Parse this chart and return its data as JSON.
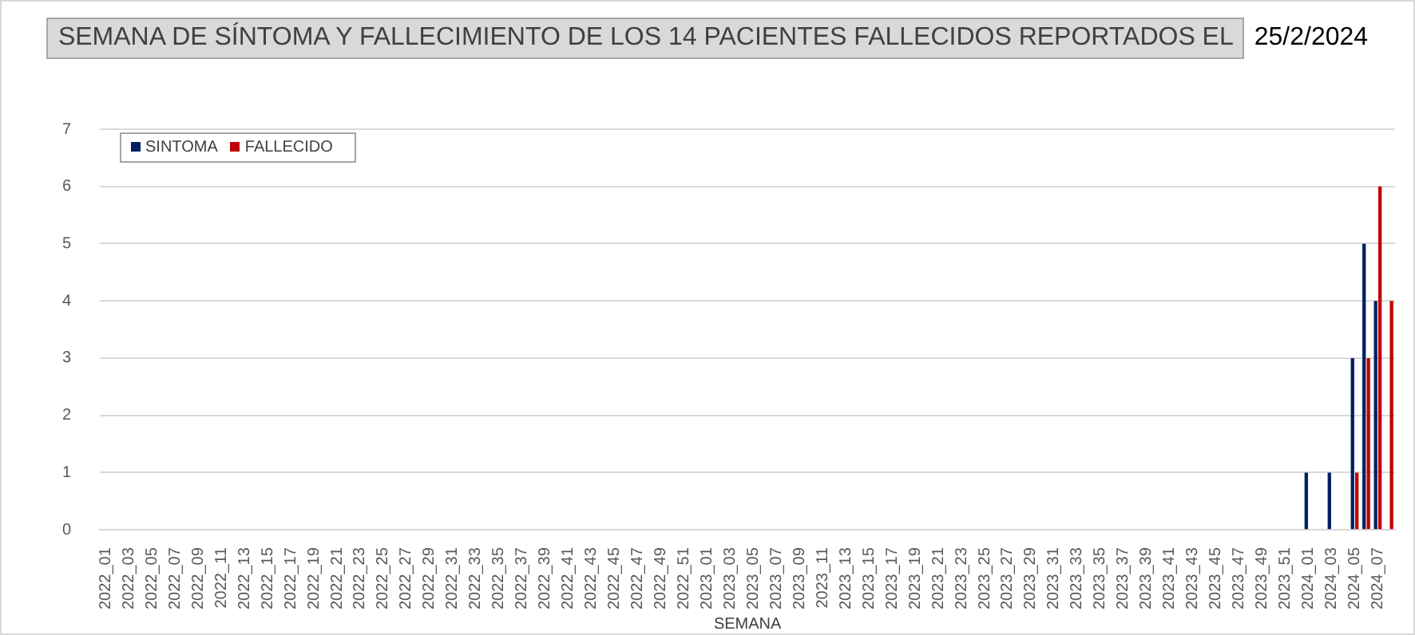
{
  "chart_data": {
    "type": "bar",
    "title": "SEMANA DE SÍNTOMA Y FALLECIMIENTO DE LOS  14   PACIENTES FALLECIDOS REPORTADOS EL",
    "subtitle": "25/2/2024",
    "xlabel": "SEMANA",
    "categories": [
      "2022_01",
      null,
      "2022_03",
      null,
      "2022_05",
      null,
      "2022_07",
      null,
      "2022_09",
      null,
      "2022_11",
      null,
      "2022_13",
      null,
      "2022_15",
      null,
      "2022_17",
      null,
      "2022_19",
      null,
      "2022_21",
      null,
      "2022_23",
      null,
      "2022_25",
      null,
      "2022_27",
      null,
      "2022_29",
      null,
      "2022_31",
      null,
      "2022_33",
      null,
      "2022_35",
      null,
      "2022_37",
      null,
      "2022_39",
      null,
      "2022_41",
      null,
      "2022_43",
      null,
      "2022_45",
      null,
      "2022_47",
      null,
      "2022_49",
      null,
      "2022_51",
      null,
      "2023_01",
      null,
      "2023_03",
      null,
      "2023_05",
      null,
      "2023_07",
      null,
      "2023_09",
      null,
      "2023_11",
      null,
      "2023_13",
      null,
      "2023_15",
      null,
      "2023_17",
      null,
      "2023_19",
      null,
      "2023_21",
      null,
      "2023_23",
      null,
      "2023_25",
      null,
      "2023_27",
      null,
      "2023_29",
      null,
      "2023_31",
      null,
      "2023_33",
      null,
      "2023_35",
      null,
      "2023_37",
      null,
      "2023_39",
      null,
      "2023_41",
      null,
      "2023_43",
      null,
      "2023_45",
      null,
      "2023_47",
      null,
      "2023_49",
      null,
      "2023_51",
      null,
      "2024_01",
      null,
      "2024_03",
      null,
      "2024_05",
      null,
      "2024_07",
      null
    ],
    "series": [
      {
        "name": "SINTOMA",
        "color": "#002060",
        "values": [
          0,
          0,
          0,
          0,
          0,
          0,
          0,
          0,
          0,
          0,
          0,
          0,
          0,
          0,
          0,
          0,
          0,
          0,
          0,
          0,
          0,
          0,
          0,
          0,
          0,
          0,
          0,
          0,
          0,
          0,
          0,
          0,
          0,
          0,
          0,
          0,
          0,
          0,
          0,
          0,
          0,
          0,
          0,
          0,
          0,
          0,
          0,
          0,
          0,
          0,
          0,
          0,
          0,
          0,
          0,
          0,
          0,
          0,
          0,
          0,
          0,
          0,
          0,
          0,
          0,
          0,
          0,
          0,
          0,
          0,
          0,
          0,
          0,
          0,
          0,
          0,
          0,
          0,
          0,
          0,
          0,
          0,
          0,
          0,
          0,
          0,
          0,
          0,
          0,
          0,
          0,
          0,
          0,
          0,
          0,
          0,
          0,
          0,
          0,
          0,
          0,
          0,
          0,
          0,
          1,
          0,
          1,
          0,
          3,
          5,
          4,
          0
        ]
      },
      {
        "name": "FALLECIDO",
        "color": "#c00000",
        "values": [
          0,
          0,
          0,
          0,
          0,
          0,
          0,
          0,
          0,
          0,
          0,
          0,
          0,
          0,
          0,
          0,
          0,
          0,
          0,
          0,
          0,
          0,
          0,
          0,
          0,
          0,
          0,
          0,
          0,
          0,
          0,
          0,
          0,
          0,
          0,
          0,
          0,
          0,
          0,
          0,
          0,
          0,
          0,
          0,
          0,
          0,
          0,
          0,
          0,
          0,
          0,
          0,
          0,
          0,
          0,
          0,
          0,
          0,
          0,
          0,
          0,
          0,
          0,
          0,
          0,
          0,
          0,
          0,
          0,
          0,
          0,
          0,
          0,
          0,
          0,
          0,
          0,
          0,
          0,
          0,
          0,
          0,
          0,
          0,
          0,
          0,
          0,
          0,
          0,
          0,
          0,
          0,
          0,
          0,
          0,
          0,
          0,
          0,
          0,
          0,
          0,
          0,
          0,
          0,
          0,
          0,
          0,
          0,
          1,
          3,
          6,
          4
        ]
      }
    ],
    "ylim": [
      0,
      7
    ],
    "yticks": [
      0,
      1,
      2,
      3,
      4,
      5,
      6,
      7
    ],
    "grid": "y",
    "legend": "top left"
  }
}
